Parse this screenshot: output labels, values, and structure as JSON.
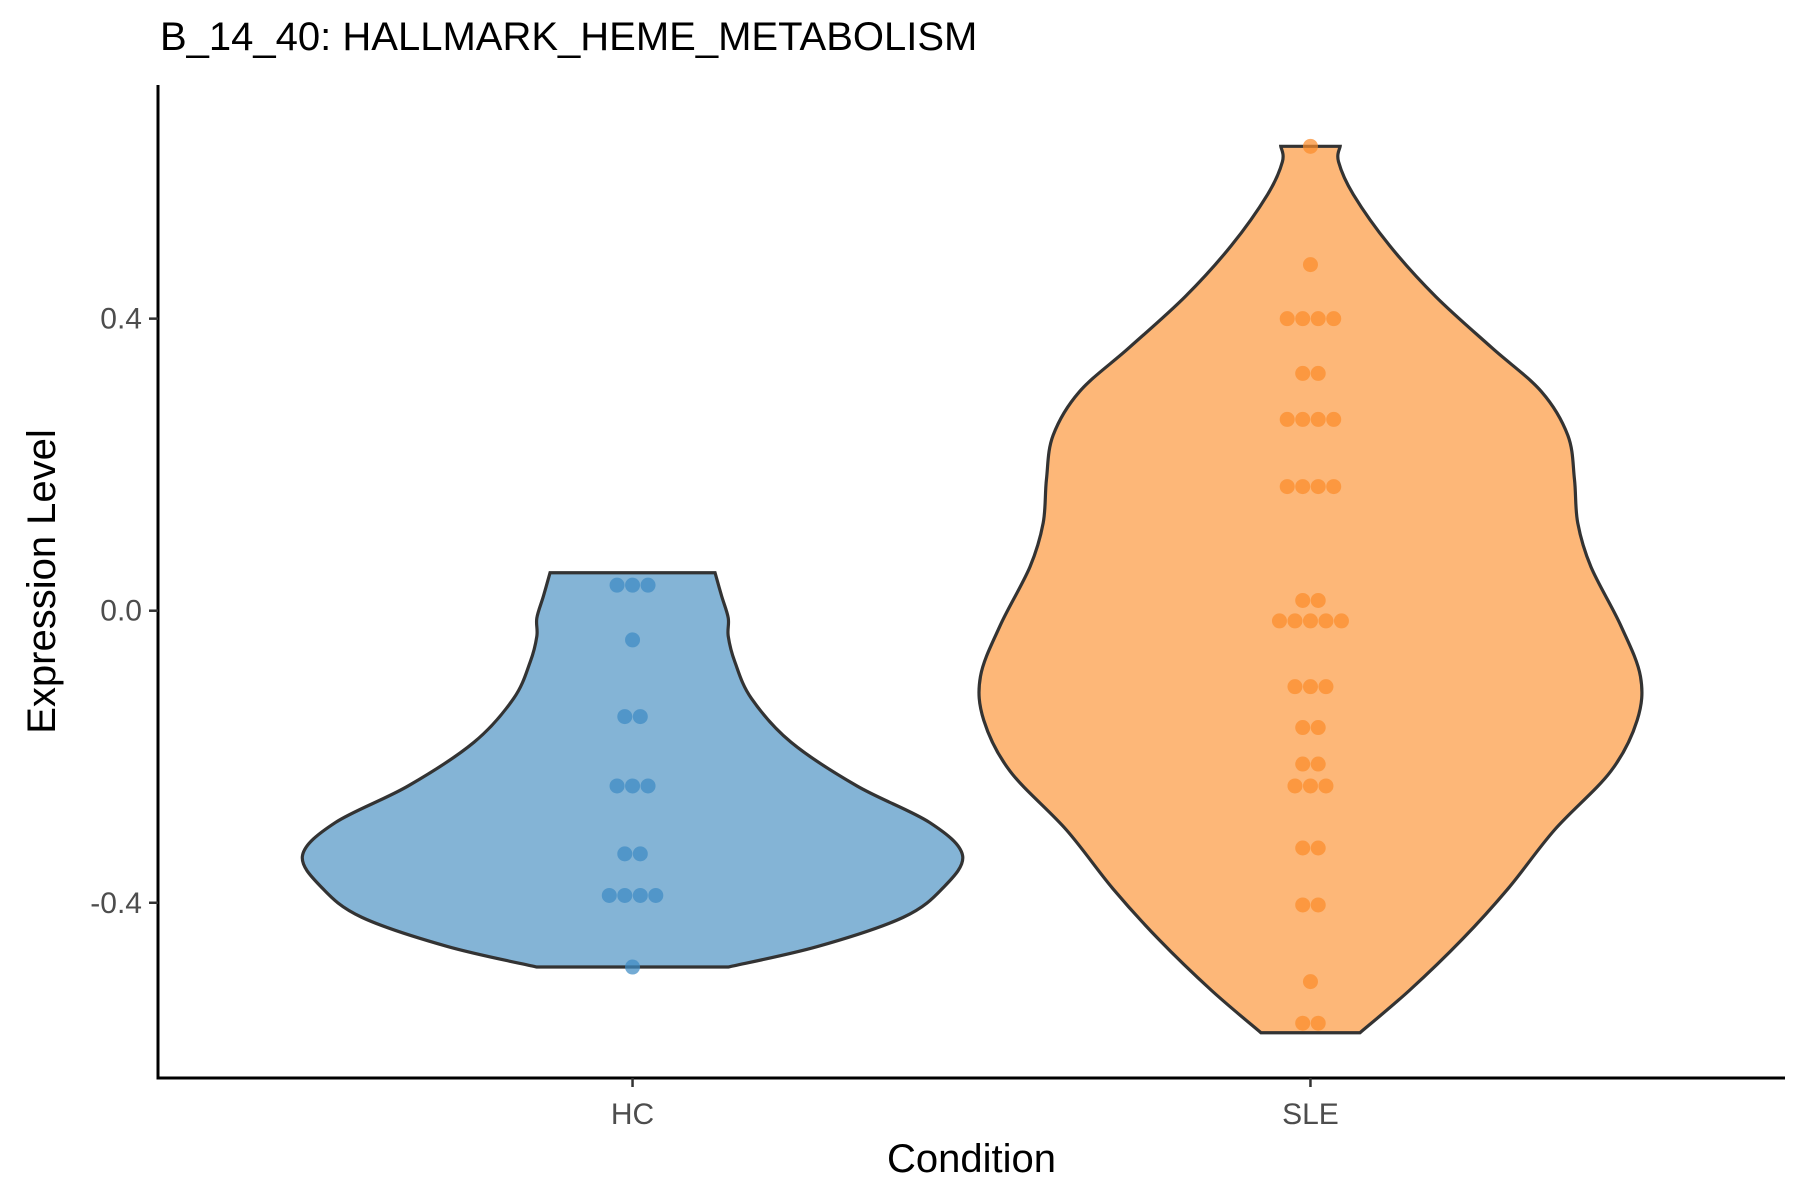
{
  "chart_data": {
    "type": "violin",
    "title": "B_14_40: HALLMARK_HEME_METABOLISM",
    "xlabel": "Condition",
    "ylabel": "Expression Level",
    "ylim": [
      -0.64,
      0.72
    ],
    "y_ticks": [
      -0.4,
      0.0,
      0.4
    ],
    "y_tick_labels": [
      "-0.4",
      "0.0",
      "0.4"
    ],
    "grid": false,
    "legend": "none",
    "categories": [
      "HC",
      "SLE"
    ],
    "groups": [
      {
        "category": "HC",
        "fill_color": "#84b4d6",
        "point_color": "#3d8ac4",
        "violin_min": -0.488,
        "violin_max": 0.052,
        "density_profile": [
          [
            -0.488,
            0.29
          ],
          [
            -0.46,
            0.56
          ],
          [
            -0.42,
            0.82
          ],
          [
            -0.38,
            0.94
          ],
          [
            -0.335,
            1.0
          ],
          [
            -0.29,
            0.9
          ],
          [
            -0.24,
            0.68
          ],
          [
            -0.18,
            0.48
          ],
          [
            -0.12,
            0.36
          ],
          [
            -0.07,
            0.31
          ],
          [
            -0.035,
            0.29
          ],
          [
            -0.01,
            0.29
          ],
          [
            0.02,
            0.27
          ],
          [
            0.052,
            0.25
          ]
        ],
        "points": [
          0.035,
          0.035,
          0.035,
          -0.04,
          -0.145,
          -0.145,
          -0.24,
          -0.24,
          -0.24,
          -0.333,
          -0.333,
          -0.39,
          -0.39,
          -0.39,
          -0.39,
          -0.488
        ]
      },
      {
        "category": "SLE",
        "fill_color": "#fdb778",
        "point_color": "#fb8c2b",
        "violin_min": -0.578,
        "violin_max": 0.636,
        "density_profile": [
          [
            -0.578,
            0.15
          ],
          [
            -0.52,
            0.3
          ],
          [
            -0.45,
            0.46
          ],
          [
            -0.38,
            0.6
          ],
          [
            -0.3,
            0.74
          ],
          [
            -0.22,
            0.91
          ],
          [
            -0.15,
            0.99
          ],
          [
            -0.09,
            1.0
          ],
          [
            -0.02,
            0.94
          ],
          [
            0.06,
            0.85
          ],
          [
            0.12,
            0.81
          ],
          [
            0.18,
            0.8
          ],
          [
            0.24,
            0.78
          ],
          [
            0.3,
            0.7
          ],
          [
            0.36,
            0.55
          ],
          [
            0.43,
            0.38
          ],
          [
            0.5,
            0.24
          ],
          [
            0.57,
            0.13
          ],
          [
            0.615,
            0.085
          ],
          [
            0.636,
            0.09
          ]
        ],
        "points": [
          0.636,
          0.474,
          0.4,
          0.4,
          0.4,
          0.4,
          0.325,
          0.325,
          0.262,
          0.262,
          0.262,
          0.262,
          0.17,
          0.17,
          0.17,
          0.17,
          0.014,
          0.014,
          -0.014,
          -0.014,
          -0.014,
          -0.014,
          -0.014,
          -0.104,
          -0.104,
          -0.104,
          -0.16,
          -0.16,
          -0.21,
          -0.21,
          -0.24,
          -0.24,
          -0.24,
          -0.325,
          -0.325,
          -0.403,
          -0.403,
          -0.508,
          -0.565,
          -0.565
        ]
      }
    ]
  }
}
